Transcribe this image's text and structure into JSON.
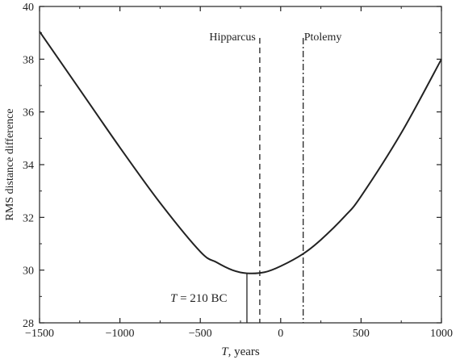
{
  "chart_data": {
    "type": "line",
    "xlabel_italic": "T",
    "xlabel_rest": ", years",
    "ylabel": "RMS distance difference",
    "xlim": [
      -1500,
      1000
    ],
    "ylim": [
      28,
      40
    ],
    "x_ticks": [
      -1500,
      -1000,
      -500,
      0,
      500,
      1000
    ],
    "x_tick_labels": [
      "−1500",
      "−1000",
      "−500",
      "0",
      "500",
      "1000"
    ],
    "y_ticks": [
      28,
      30,
      32,
      34,
      36,
      38,
      40
    ],
    "y_tick_labels": [
      "28",
      "30",
      "32",
      "34",
      "36",
      "38",
      "40"
    ],
    "grid": false,
    "series": [
      {
        "x": [
          -1500,
          -1250,
          -1000,
          -750,
          -500,
          -400,
          -300,
          -210,
          -100,
          0,
          140,
          250,
          400,
          500,
          750,
          1000
        ],
        "y": [
          39.05,
          36.85,
          34.65,
          32.55,
          30.7,
          30.3,
          30.0,
          29.88,
          29.92,
          30.15,
          30.62,
          31.15,
          32.05,
          32.8,
          35.2,
          38.0
        ],
        "color": "#222222"
      }
    ],
    "reference_lines": [
      {
        "label": "Hipparcus",
        "x": -130,
        "style": "dashed"
      },
      {
        "label": "Ptolemy",
        "x": 140,
        "style": "dashdot"
      }
    ],
    "minimum_marker": {
      "x": -210,
      "y": 29.88
    },
    "annotation": {
      "italic": "T",
      "rest": " = 210 BC"
    }
  }
}
